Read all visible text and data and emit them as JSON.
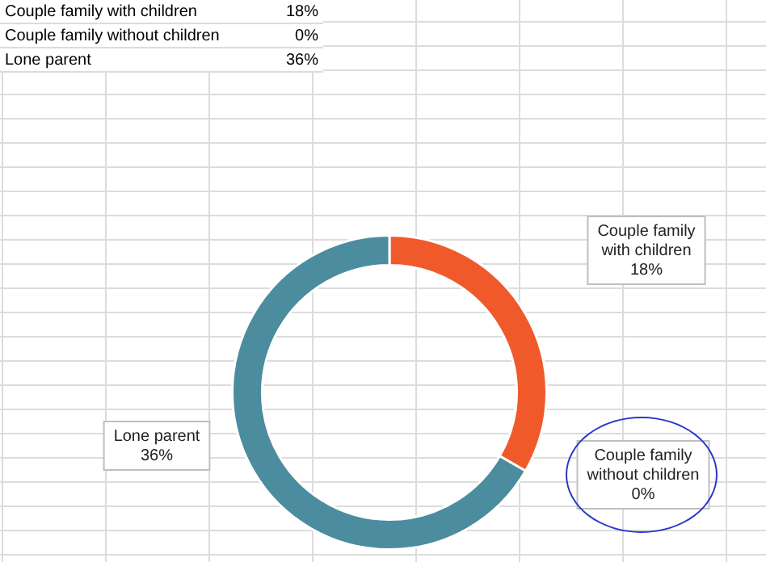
{
  "chart_data": {
    "type": "donut",
    "categories": [
      "Couple family with children",
      "Couple family without children",
      "Lone parent"
    ],
    "values": [
      18,
      0,
      36
    ],
    "value_labels": [
      "18%",
      "0%",
      "36%"
    ],
    "colors": [
      "#f0592a",
      "#a5a5a5",
      "#4b8c9e"
    ],
    "legend": "top left"
  }
}
